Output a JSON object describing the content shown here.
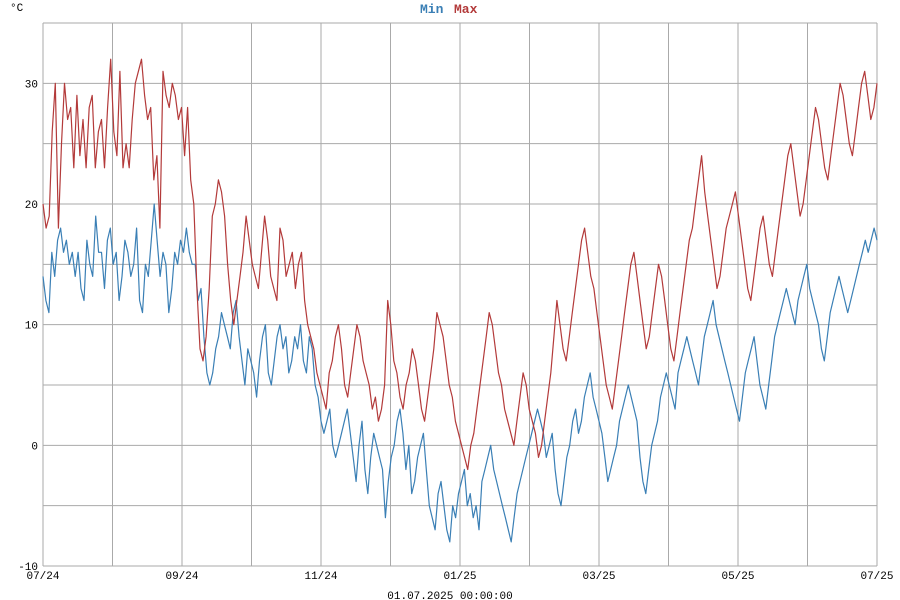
{
  "chart_data": {
    "type": "line",
    "unit_label": "°C",
    "footer": "01.07.2025 00:00:00",
    "ylim": [
      -10,
      35
    ],
    "y_ticks": [
      -10,
      0,
      10,
      20,
      30
    ],
    "x_ticks": [
      "07/24",
      "09/24",
      "11/24",
      "01/25",
      "03/25",
      "05/25",
      "07/25"
    ],
    "grid": true,
    "legend_position": "top-center",
    "x_day_span": 365,
    "series": [
      {
        "name": "Min",
        "color": "#3a7fb5",
        "values": [
          14,
          12,
          11,
          16,
          14,
          17,
          18,
          16,
          17,
          15,
          16,
          14,
          16,
          13,
          12,
          17,
          15,
          14,
          19,
          16,
          16,
          13,
          17,
          18,
          15,
          16,
          12,
          14,
          17,
          16,
          14,
          15,
          18,
          12,
          11,
          15,
          14,
          17,
          20,
          17,
          14,
          16,
          15,
          11,
          13,
          16,
          15,
          17,
          16,
          18,
          16,
          15,
          15,
          12,
          13,
          9,
          6,
          5,
          6,
          8,
          9,
          11,
          10,
          9,
          8,
          11,
          12,
          9,
          7,
          5,
          8,
          7,
          6,
          4,
          7,
          9,
          10,
          6,
          5,
          7,
          9,
          10,
          8,
          9,
          6,
          7,
          9,
          8,
          10,
          7,
          6,
          9,
          8,
          5,
          4,
          2,
          1,
          2,
          3,
          0,
          -1,
          0,
          1,
          2,
          3,
          1,
          -1,
          -3,
          0,
          2,
          -2,
          -4,
          -1,
          1,
          0,
          -1,
          -2,
          -6,
          -3,
          -1,
          0,
          2,
          3,
          1,
          -2,
          0,
          -4,
          -3,
          -1,
          0,
          1,
          -2,
          -5,
          -6,
          -7,
          -4,
          -3,
          -5,
          -7,
          -8,
          -5,
          -6,
          -4,
          -3,
          -2,
          -5,
          -4,
          -6,
          -5,
          -7,
          -3,
          -2,
          -1,
          0,
          -2,
          -3,
          -4,
          -5,
          -6,
          -7,
          -8,
          -6,
          -4,
          -3,
          -2,
          -1,
          0,
          1,
          2,
          3,
          2,
          1,
          -1,
          0,
          1,
          -2,
          -4,
          -5,
          -3,
          -1,
          0,
          2,
          3,
          1,
          2,
          4,
          5,
          6,
          4,
          3,
          2,
          1,
          -1,
          -3,
          -2,
          -1,
          0,
          2,
          3,
          4,
          5,
          4,
          3,
          2,
          -1,
          -3,
          -4,
          -2,
          0,
          1,
          2,
          4,
          5,
          6,
          5,
          4,
          3,
          6,
          7,
          8,
          9,
          8,
          7,
          6,
          5,
          7,
          9,
          10,
          11,
          12,
          10,
          9,
          8,
          7,
          6,
          5,
          4,
          3,
          2,
          4,
          6,
          7,
          8,
          9,
          7,
          5,
          4,
          3,
          5,
          7,
          9,
          10,
          11,
          12,
          13,
          12,
          11,
          10,
          12,
          13,
          14,
          15,
          13,
          12,
          11,
          10,
          8,
          7,
          9,
          11,
          12,
          13,
          14,
          13,
          12,
          11,
          12,
          13,
          14,
          15,
          16,
          17,
          16,
          17,
          18,
          17
        ]
      },
      {
        "name": "Max",
        "color": "#b33a3a",
        "values": [
          20,
          18,
          19,
          26,
          30,
          18,
          25,
          30,
          27,
          28,
          23,
          29,
          24,
          27,
          23,
          28,
          29,
          23,
          26,
          27,
          23,
          28,
          32,
          26,
          24,
          31,
          23,
          25,
          23,
          27,
          30,
          31,
          32,
          29,
          27,
          28,
          22,
          24,
          18,
          31,
          29,
          28,
          30,
          29,
          27,
          28,
          24,
          28,
          22,
          20,
          13,
          8,
          7,
          9,
          13,
          19,
          20,
          22,
          21,
          19,
          15,
          12,
          10,
          12,
          14,
          16,
          19,
          17,
          15,
          14,
          13,
          16,
          19,
          17,
          14,
          13,
          12,
          18,
          17,
          14,
          15,
          16,
          13,
          15,
          16,
          12,
          10,
          9,
          8,
          6,
          5,
          4,
          3,
          6,
          7,
          9,
          10,
          8,
          5,
          4,
          6,
          8,
          10,
          9,
          7,
          6,
          5,
          3,
          4,
          2,
          3,
          5,
          12,
          10,
          7,
          6,
          4,
          3,
          5,
          6,
          8,
          7,
          5,
          3,
          2,
          4,
          6,
          8,
          11,
          10,
          9,
          7,
          5,
          4,
          2,
          1,
          0,
          -1,
          -2,
          0,
          1,
          3,
          5,
          7,
          9,
          11,
          10,
          8,
          6,
          5,
          3,
          2,
          1,
          0,
          2,
          4,
          6,
          5,
          3,
          2,
          1,
          -1,
          0,
          2,
          4,
          6,
          9,
          12,
          10,
          8,
          7,
          9,
          11,
          13,
          15,
          17,
          18,
          16,
          14,
          13,
          11,
          9,
          7,
          5,
          4,
          3,
          5,
          7,
          9,
          11,
          13,
          15,
          16,
          14,
          12,
          10,
          8,
          9,
          11,
          13,
          15,
          14,
          12,
          10,
          8,
          7,
          9,
          11,
          13,
          15,
          17,
          18,
          20,
          22,
          24,
          21,
          19,
          17,
          15,
          13,
          14,
          16,
          18,
          19,
          20,
          21,
          19,
          17,
          15,
          13,
          12,
          14,
          16,
          18,
          19,
          17,
          15,
          14,
          16,
          18,
          20,
          22,
          24,
          25,
          23,
          21,
          19,
          20,
          22,
          24,
          26,
          28,
          27,
          25,
          23,
          22,
          24,
          26,
          28,
          30,
          29,
          27,
          25,
          24,
          26,
          28,
          30,
          31,
          29,
          27,
          28,
          30
        ]
      }
    ]
  }
}
